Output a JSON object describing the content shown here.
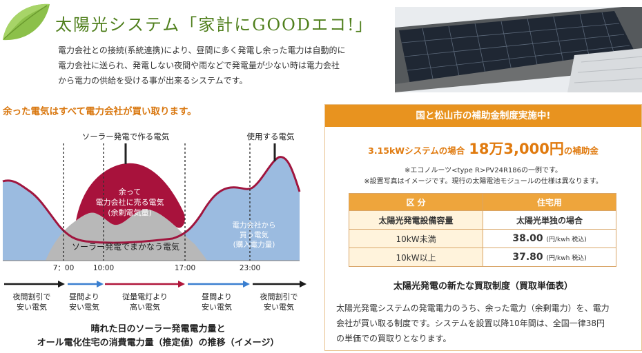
{
  "header": {
    "title": "太陽光システム「家計にGOODエコ!」",
    "intro_lines": [
      "電力会社との接続(系統連携)により、昼間に多く発電し余った電力は自動的に",
      "電力会社に送られ、発電しない夜間や雨などで発電量が少ない時は電力会社",
      "から電力の供給を受ける事が出来るシステムです。"
    ]
  },
  "left": {
    "subhead": "余った電気はすべて電力会社が買い取ります。",
    "chart": {
      "label_generated": "ソーラー発電で作る電気",
      "label_used": "使用する電気",
      "label_surplus": [
        "余って",
        "電力会社に売る電気",
        "(余剰電気量)"
      ],
      "label_purchased": [
        "電力会社から",
        "買う電気",
        "(購入電力量)"
      ],
      "label_covered": "ソーラー発電でまかなう電気",
      "times": [
        "7：00",
        "10:00",
        "17:00",
        "23:00"
      ],
      "periods": [
        {
          "line1": "夜間割引で",
          "line2": "安い電気",
          "color": "#1a1a1a"
        },
        {
          "line1": "昼間より",
          "line2": "安い電気",
          "color": "#3a7fd0"
        },
        {
          "line1": "従量電灯より",
          "line2": "高い電気",
          "color": "#b0163a"
        },
        {
          "line1": "昼間より",
          "line2": "安い電気",
          "color": "#3a7fd0"
        },
        {
          "line1": "夜間割引で",
          "line2": "安い電気",
          "color": "#1a1a1a"
        }
      ],
      "colors": {
        "usage_fill": "#9bbbe0",
        "usage_line": "#a0153e",
        "solar_fill": "#b8b8b8",
        "surplus_fill": "#a8123c"
      }
    },
    "caption_lines": [
      "晴れた日のソーラー発電電力量と",
      "オール電化住宅の消費電力量（推定値）の推移（イメージ）"
    ]
  },
  "panel": {
    "head": "国と松山市の補助金制度実施中!",
    "subsidy_lead": "3.15kWシステムの場合",
    "subsidy_amount": "18万3,000円",
    "subsidy_tail": "の補助金",
    "note1": "※エコノルーツ<type R>PV24R186の一例です。",
    "note2": "※設置写真はイメージです。現行の太陽電池モジュールの仕様は異なります。",
    "table": {
      "col1": "区 分",
      "col2": "住宅用",
      "row_head_label": "太陽光発電設備容量",
      "row_head_value": "太陽光単独の場合",
      "rows": [
        {
          "label": "10kW未満",
          "price": "38.00",
          "unit": "(円/kwh 税込)"
        },
        {
          "label": "10kW以上",
          "price": "37.80",
          "unit": "(円/kwh 税込)"
        }
      ]
    },
    "buyback_title": "太陽光発電の新たな買取制度（買取単価表）",
    "buyback_lines": [
      "太陽光発電システムの発電電力のうち、余った電力（余剰電力）を、電力",
      "会社が買い取る制度です。システムを設置以降10年間は、全国一律38円",
      "の単価での買取りとなります。"
    ]
  },
  "colors": {
    "green_title": "#4f7f1c",
    "orange": "#e8931f",
    "orange_text": "#d9770f"
  }
}
